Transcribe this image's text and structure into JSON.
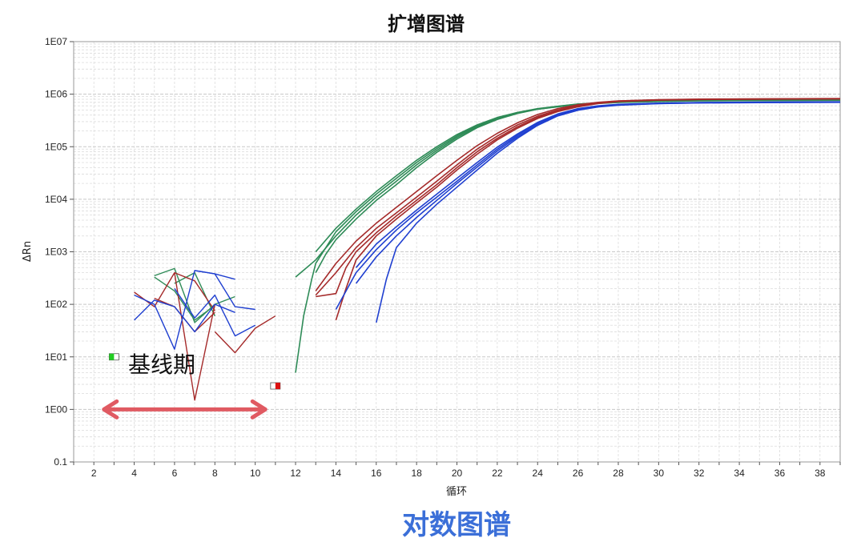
{
  "chart_data": {
    "type": "line",
    "title": "扩增图谱",
    "xlabel": "循环",
    "ylabel": "ΔRn",
    "y_scale": "log",
    "xlim": [
      1,
      39
    ],
    "ylim": [
      0.1,
      10000000
    ],
    "x_ticks": [
      2,
      4,
      6,
      8,
      10,
      12,
      14,
      16,
      18,
      20,
      22,
      24,
      26,
      28,
      30,
      32,
      34,
      36,
      38
    ],
    "y_ticks": [
      {
        "value": 0.1,
        "label": "0.1"
      },
      {
        "value": 1,
        "label": "1E00"
      },
      {
        "value": 10,
        "label": "1E01"
      },
      {
        "value": 100,
        "label": "1E02"
      },
      {
        "value": 1000,
        "label": "1E03"
      },
      {
        "value": 10000,
        "label": "1E04"
      },
      {
        "value": 100000,
        "label": "1E05"
      },
      {
        "value": 1000000,
        "label": "1E06"
      },
      {
        "value": 10000000,
        "label": "1E07"
      }
    ],
    "grid": true,
    "series_colors": {
      "green": "#2e8b57",
      "red": "#a52a2a",
      "blue": "#1f3fd0"
    },
    "curves": [
      {
        "color": "green",
        "points": [
          [
            12,
            330
          ],
          [
            13,
            700
          ],
          [
            14,
            2000
          ],
          [
            15,
            5000
          ],
          [
            16,
            11000
          ],
          [
            17,
            22000
          ],
          [
            18,
            45000
          ],
          [
            19,
            85000
          ],
          [
            20,
            150000
          ],
          [
            21,
            240000
          ],
          [
            22,
            340000
          ],
          [
            23,
            440000
          ],
          [
            24,
            520000
          ],
          [
            25,
            580000
          ],
          [
            26,
            640000
          ],
          [
            28,
            700000
          ],
          [
            30,
            730000
          ],
          [
            32,
            750000
          ],
          [
            35,
            760000
          ],
          [
            39,
            770000
          ]
        ]
      },
      {
        "color": "green",
        "points": [
          [
            13,
            1000
          ],
          [
            14,
            2800
          ],
          [
            15,
            6500
          ],
          [
            16,
            14000
          ],
          [
            17,
            28000
          ],
          [
            18,
            55000
          ],
          [
            19,
            100000
          ],
          [
            20,
            170000
          ],
          [
            21,
            260000
          ],
          [
            22,
            360000
          ],
          [
            23,
            450000
          ],
          [
            24,
            530000
          ],
          [
            25,
            590000
          ],
          [
            26,
            650000
          ],
          [
            28,
            710000
          ],
          [
            30,
            740000
          ],
          [
            32,
            760000
          ],
          [
            35,
            770000
          ],
          [
            39,
            780000
          ]
        ]
      },
      {
        "color": "green",
        "points": [
          [
            12,
            5
          ],
          [
            12.4,
            60
          ],
          [
            12.8,
            300
          ],
          [
            13,
            600
          ],
          [
            13.5,
            1200
          ],
          [
            14,
            2400
          ],
          [
            15,
            5800
          ],
          [
            16,
            12500
          ],
          [
            17,
            25000
          ],
          [
            18,
            50000
          ],
          [
            19,
            92000
          ],
          [
            20,
            160000
          ],
          [
            21,
            250000
          ],
          [
            22,
            350000
          ],
          [
            23,
            445000
          ],
          [
            24,
            525000
          ],
          [
            25,
            585000
          ],
          [
            26,
            645000
          ],
          [
            28,
            705000
          ],
          [
            30,
            735000
          ],
          [
            32,
            755000
          ],
          [
            35,
            765000
          ],
          [
            39,
            775000
          ]
        ]
      },
      {
        "color": "green",
        "points": [
          [
            13,
            400
          ],
          [
            13.5,
            900
          ],
          [
            14,
            1700
          ],
          [
            15,
            4200
          ],
          [
            16,
            9500
          ],
          [
            17,
            19000
          ],
          [
            18,
            40000
          ],
          [
            19,
            78000
          ],
          [
            20,
            140000
          ],
          [
            21,
            230000
          ],
          [
            22,
            330000
          ],
          [
            23,
            430000
          ],
          [
            24,
            515000
          ],
          [
            25,
            575000
          ],
          [
            26,
            635000
          ],
          [
            28,
            695000
          ],
          [
            30,
            725000
          ],
          [
            32,
            745000
          ],
          [
            35,
            755000
          ],
          [
            39,
            765000
          ]
        ]
      },
      {
        "color": "red",
        "points": [
          [
            13,
            150
          ],
          [
            14,
            400
          ],
          [
            15,
            1200
          ],
          [
            16,
            2800
          ],
          [
            17,
            5500
          ],
          [
            18,
            11000
          ],
          [
            19,
            22000
          ],
          [
            20,
            45000
          ],
          [
            21,
            90000
          ],
          [
            22,
            160000
          ],
          [
            23,
            260000
          ],
          [
            24,
            380000
          ],
          [
            25,
            500000
          ],
          [
            26,
            610000
          ],
          [
            27,
            690000
          ],
          [
            28,
            740000
          ],
          [
            30,
            780000
          ],
          [
            32,
            800000
          ],
          [
            35,
            810000
          ],
          [
            39,
            820000
          ]
        ]
      },
      {
        "color": "red",
        "points": [
          [
            13,
            180
          ],
          [
            14,
            600
          ],
          [
            15,
            1600
          ],
          [
            16,
            3500
          ],
          [
            17,
            7000
          ],
          [
            18,
            14000
          ],
          [
            19,
            28000
          ],
          [
            20,
            55000
          ],
          [
            21,
            105000
          ],
          [
            22,
            180000
          ],
          [
            23,
            285000
          ],
          [
            24,
            410000
          ],
          [
            25,
            530000
          ],
          [
            26,
            630000
          ],
          [
            27,
            700000
          ],
          [
            28,
            745000
          ],
          [
            30,
            785000
          ],
          [
            32,
            805000
          ],
          [
            35,
            815000
          ],
          [
            39,
            825000
          ]
        ]
      },
      {
        "color": "red",
        "points": [
          [
            13,
            140
          ],
          [
            14,
            160
          ],
          [
            14.5,
            500
          ],
          [
            15,
            1000
          ],
          [
            16,
            2300
          ],
          [
            17,
            4800
          ],
          [
            18,
            9500
          ],
          [
            19,
            19000
          ],
          [
            20,
            40000
          ],
          [
            21,
            80000
          ],
          [
            22,
            145000
          ],
          [
            23,
            240000
          ],
          [
            24,
            360000
          ],
          [
            25,
            480000
          ],
          [
            26,
            590000
          ],
          [
            27,
            675000
          ],
          [
            28,
            730000
          ],
          [
            30,
            775000
          ],
          [
            32,
            795000
          ],
          [
            35,
            805000
          ],
          [
            39,
            815000
          ]
        ]
      },
      {
        "color": "red",
        "points": [
          [
            14,
            50
          ],
          [
            14.5,
            200
          ],
          [
            15,
            700
          ],
          [
            16,
            2000
          ],
          [
            17,
            4200
          ],
          [
            18,
            8500
          ],
          [
            19,
            17000
          ],
          [
            20,
            36000
          ],
          [
            21,
            72000
          ],
          [
            22,
            135000
          ],
          [
            23,
            225000
          ],
          [
            24,
            345000
          ],
          [
            25,
            465000
          ],
          [
            26,
            575000
          ],
          [
            27,
            665000
          ],
          [
            28,
            725000
          ],
          [
            30,
            770000
          ],
          [
            32,
            790000
          ],
          [
            35,
            800000
          ],
          [
            39,
            810000
          ]
        ]
      },
      {
        "color": "blue",
        "points": [
          [
            14,
            80
          ],
          [
            15,
            400
          ],
          [
            16,
            1100
          ],
          [
            17,
            2600
          ],
          [
            18,
            5500
          ],
          [
            19,
            11000
          ],
          [
            20,
            22000
          ],
          [
            21,
            45000
          ],
          [
            22,
            90000
          ],
          [
            23,
            165000
          ],
          [
            24,
            280000
          ],
          [
            25,
            410000
          ],
          [
            26,
            520000
          ],
          [
            27,
            590000
          ],
          [
            28,
            630000
          ],
          [
            30,
            670000
          ],
          [
            32,
            690000
          ],
          [
            35,
            700000
          ],
          [
            39,
            710000
          ]
        ]
      },
      {
        "color": "blue",
        "points": [
          [
            15,
            250
          ],
          [
            16,
            800
          ],
          [
            17,
            2000
          ],
          [
            18,
            4500
          ],
          [
            19,
            9500
          ],
          [
            20,
            20000
          ],
          [
            21,
            41000
          ],
          [
            22,
            83000
          ],
          [
            23,
            155000
          ],
          [
            24,
            265000
          ],
          [
            25,
            395000
          ],
          [
            26,
            505000
          ],
          [
            27,
            580000
          ],
          [
            28,
            625000
          ],
          [
            30,
            665000
          ],
          [
            32,
            685000
          ],
          [
            35,
            695000
          ],
          [
            39,
            705000
          ]
        ]
      },
      {
        "color": "blue",
        "points": [
          [
            15,
            500
          ],
          [
            16,
            1400
          ],
          [
            17,
            3000
          ],
          [
            18,
            6200
          ],
          [
            19,
            12500
          ],
          [
            20,
            25000
          ],
          [
            21,
            50000
          ],
          [
            22,
            98000
          ],
          [
            23,
            175000
          ],
          [
            24,
            290000
          ],
          [
            25,
            420000
          ],
          [
            26,
            530000
          ],
          [
            27,
            600000
          ],
          [
            28,
            640000
          ],
          [
            30,
            675000
          ],
          [
            32,
            695000
          ],
          [
            35,
            705000
          ],
          [
            39,
            715000
          ]
        ]
      },
      {
        "color": "blue",
        "points": [
          [
            16,
            45
          ],
          [
            16.5,
            300
          ],
          [
            17,
            1200
          ],
          [
            18,
            3500
          ],
          [
            19,
            8000
          ],
          [
            20,
            17000
          ],
          [
            21,
            36000
          ],
          [
            22,
            75000
          ],
          [
            23,
            145000
          ],
          [
            24,
            255000
          ],
          [
            25,
            385000
          ],
          [
            26,
            495000
          ],
          [
            27,
            570000
          ],
          [
            28,
            615000
          ],
          [
            30,
            660000
          ],
          [
            32,
            680000
          ],
          [
            35,
            690000
          ],
          [
            39,
            700000
          ]
        ]
      }
    ],
    "baseline_noise": [
      {
        "color": "green",
        "points": [
          [
            5,
            350
          ],
          [
            6,
            480
          ],
          [
            7,
            45
          ],
          [
            8,
            100
          ],
          [
            9,
            140
          ]
        ]
      },
      {
        "color": "green",
        "points": [
          [
            5,
            330
          ],
          [
            6,
            180
          ],
          [
            7,
            50
          ],
          [
            8,
            95
          ]
        ]
      },
      {
        "color": "green",
        "points": [
          [
            6,
            250
          ],
          [
            7,
            400
          ],
          [
            8,
            60
          ]
        ]
      },
      {
        "color": "red",
        "points": [
          [
            4,
            170
          ],
          [
            5,
            90
          ],
          [
            6,
            400
          ],
          [
            7,
            1.5
          ],
          [
            8,
            100
          ]
        ]
      },
      {
        "color": "red",
        "points": [
          [
            5,
            130
          ],
          [
            6,
            90
          ],
          [
            7,
            30
          ],
          [
            8,
            70
          ]
        ]
      },
      {
        "color": "red",
        "points": [
          [
            8,
            30
          ],
          [
            9,
            12
          ],
          [
            10,
            35
          ],
          [
            11,
            60
          ]
        ]
      },
      {
        "color": "red",
        "points": [
          [
            6,
            400
          ],
          [
            7,
            280
          ],
          [
            8,
            75
          ]
        ]
      },
      {
        "color": "blue",
        "points": [
          [
            4,
            150
          ],
          [
            5,
            100
          ],
          [
            6,
            14
          ],
          [
            7,
            440
          ],
          [
            8,
            380
          ],
          [
            9,
            300
          ]
        ]
      },
      {
        "color": "blue",
        "points": [
          [
            4,
            50
          ],
          [
            5,
            120
          ],
          [
            6,
            90
          ],
          [
            7,
            30
          ],
          [
            8,
            100
          ],
          [
            9,
            70
          ]
        ]
      },
      {
        "color": "blue",
        "points": [
          [
            6,
            200
          ],
          [
            7,
            55
          ],
          [
            8,
            150
          ],
          [
            9,
            25
          ],
          [
            10,
            40
          ]
        ]
      },
      {
        "color": "blue",
        "points": [
          [
            7,
            440
          ],
          [
            8,
            380
          ],
          [
            9,
            90
          ],
          [
            10,
            80
          ]
        ]
      }
    ],
    "threshold_markers": [
      {
        "x": 3,
        "y": 10,
        "color": "#22cc22"
      },
      {
        "x": 11,
        "y": 2.8,
        "color": "#dd1111"
      }
    ],
    "annotations": {
      "baseline_label": "基线期",
      "baseline_range": [
        2.5,
        10.5
      ],
      "baseline_arrow_y": 1,
      "arrow_color": "#e05a62",
      "caption": "对数图谱"
    }
  }
}
